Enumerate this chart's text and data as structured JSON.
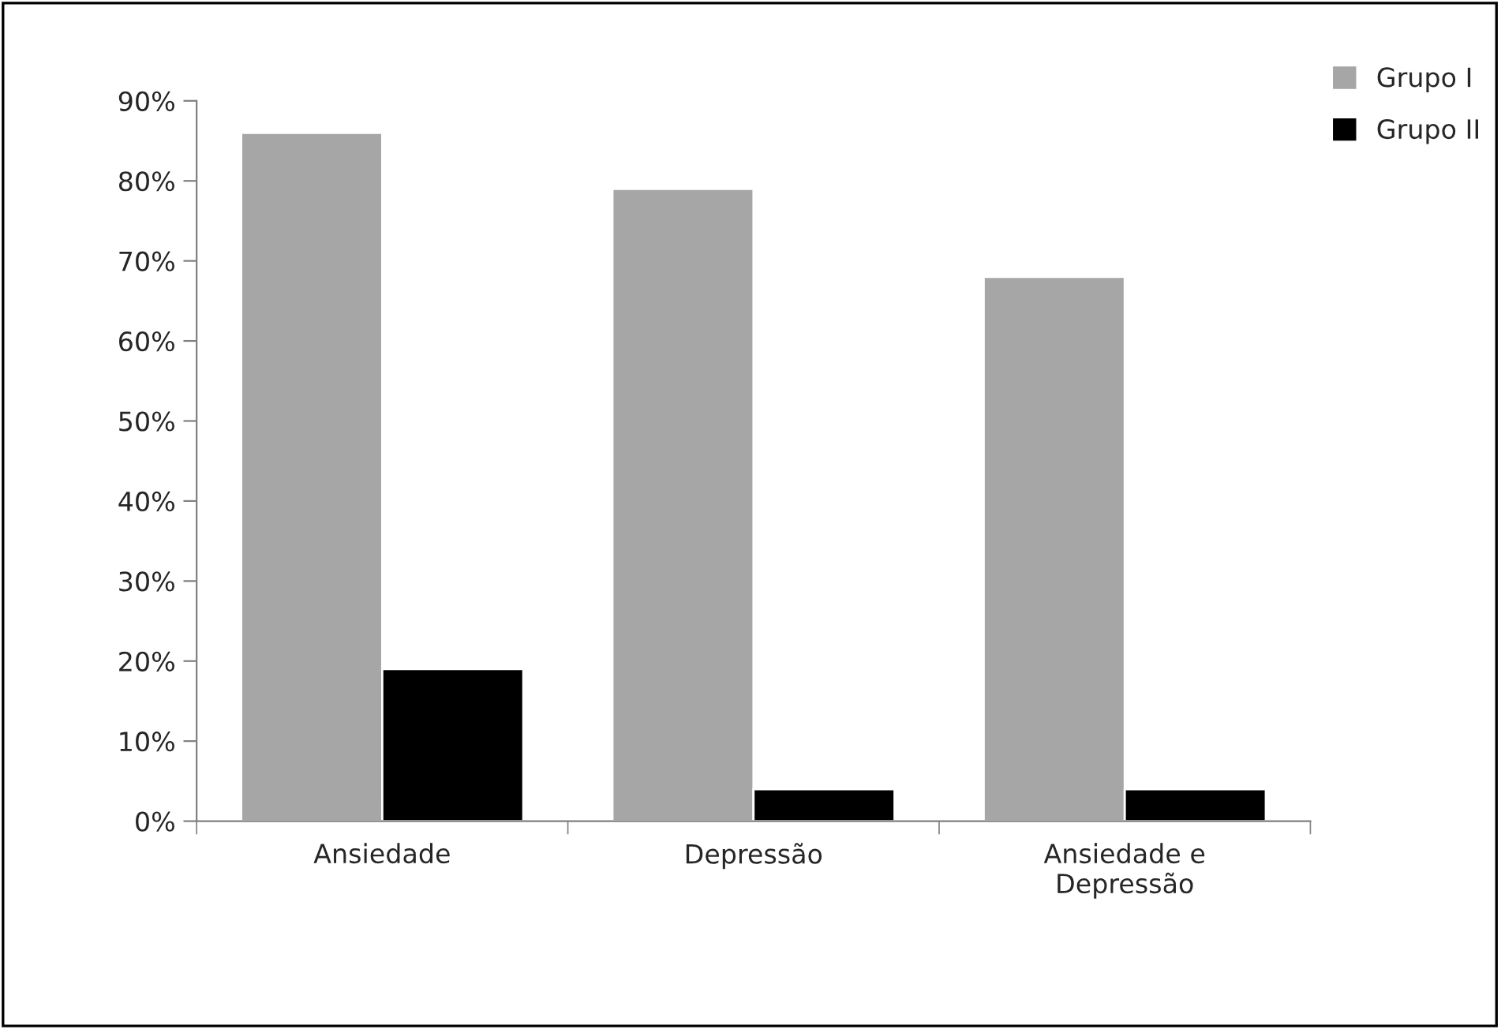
{
  "chart_data": {
    "type": "bar",
    "categories": [
      "Ansiedade",
      "Depressão",
      "Ansiedade e\nDepressão"
    ],
    "series": [
      {
        "name": "Grupo I",
        "color": "#a6a6a6",
        "values": [
          86,
          79,
          68
        ]
      },
      {
        "name": "Grupo II",
        "color": "#000000",
        "values": [
          19,
          4,
          4
        ]
      }
    ],
    "ylim": [
      0,
      90
    ],
    "yticks": [
      {
        "value": 0,
        "label": "0%"
      },
      {
        "value": 10,
        "label": "10%"
      },
      {
        "value": 20,
        "label": "20%"
      },
      {
        "value": 30,
        "label": "30%"
      },
      {
        "value": 40,
        "label": "40%"
      },
      {
        "value": 50,
        "label": "50%"
      },
      {
        "value": 60,
        "label": "60%"
      },
      {
        "value": 70,
        "label": "70%"
      },
      {
        "value": 80,
        "label": "80%"
      },
      {
        "value": 90,
        "label": "90%"
      }
    ],
    "grid": false,
    "legend": "top right"
  }
}
